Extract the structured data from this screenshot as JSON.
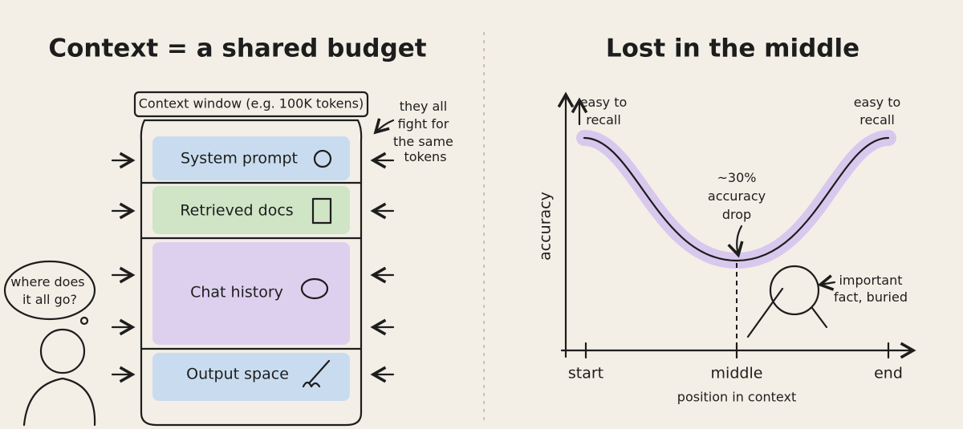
{
  "left": {
    "title": "Context = a shared budget",
    "jar_label": "Context window (e.g. 100K tokens)",
    "sections": [
      "System prompt",
      "Retrieved docs",
      "Chat history",
      "Output space"
    ],
    "side_note": [
      "they all",
      "fight for",
      "the same",
      "tokens"
    ],
    "thought": [
      "where does",
      "it all go?"
    ]
  },
  "right": {
    "title": "Lost in the middle",
    "left_note": [
      "easy to",
      "recall"
    ],
    "right_note": [
      "easy to",
      "recall"
    ],
    "drop_note": [
      "~30%",
      "accuracy",
      "drop"
    ],
    "fact_note": [
      "important",
      "fact, buried"
    ],
    "y_label": "accuracy",
    "x_ticks": [
      "start",
      "middle",
      "end"
    ],
    "x_label": "position in context"
  }
}
